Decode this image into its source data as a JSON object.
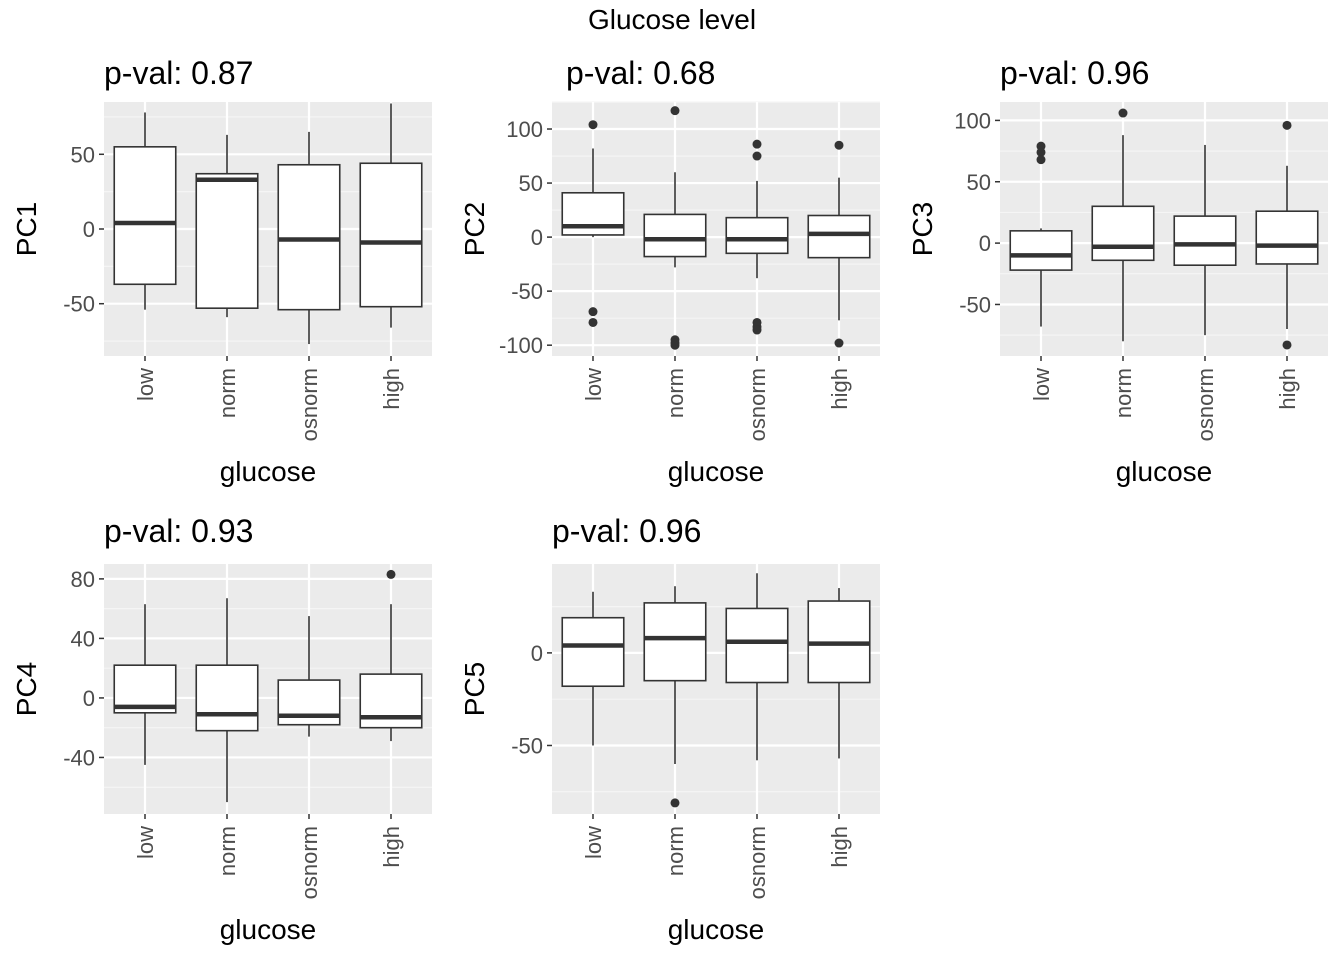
{
  "title": "Glucose level",
  "colors": {
    "panel_bg": "#ebebeb",
    "grid_major": "#ffffff",
    "grid_minor": "#f5f5f5",
    "box_fill": "#ffffff",
    "box_line": "#333333",
    "tick_text": "#4d4d4d",
    "label_text": "#000000"
  },
  "chart_data": [
    {
      "type": "boxplot",
      "title": "p-val: 0.87",
      "xlabel": "glucose",
      "ylabel": "PC1",
      "categories": [
        "low",
        "norm",
        "osnorm",
        "high"
      ],
      "ylim": [
        -85,
        85
      ],
      "yticks": [
        -50,
        0,
        50
      ],
      "boxes": [
        {
          "q1": -37,
          "median": 4,
          "q3": 55,
          "whisker_low": -54,
          "whisker_high": 78,
          "outliers": []
        },
        {
          "q1": -53,
          "median": 33,
          "q3": 37,
          "whisker_low": -59,
          "whisker_high": 63,
          "outliers": []
        },
        {
          "q1": -54,
          "median": -7,
          "q3": 43,
          "whisker_low": -77,
          "whisker_high": 65,
          "outliers": []
        },
        {
          "q1": -52,
          "median": -9,
          "q3": 44,
          "whisker_low": -66,
          "whisker_high": 84,
          "outliers": []
        }
      ]
    },
    {
      "type": "boxplot",
      "title": "p-val: 0.68",
      "xlabel": "glucose",
      "ylabel": "PC2",
      "categories": [
        "low",
        "norm",
        "osnorm",
        "high"
      ],
      "ylim": [
        -110,
        125
      ],
      "yticks": [
        -100,
        -50,
        0,
        50,
        100
      ],
      "boxes": [
        {
          "q1": 2,
          "median": 10,
          "q3": 41,
          "whisker_low": 0,
          "whisker_high": 82,
          "outliers": [
            104,
            -69,
            -79
          ]
        },
        {
          "q1": -18,
          "median": -2,
          "q3": 21,
          "whisker_low": -28,
          "whisker_high": 60,
          "outliers": [
            117,
            -95,
            -98,
            -100
          ]
        },
        {
          "q1": -15,
          "median": -2,
          "q3": 18,
          "whisker_low": -38,
          "whisker_high": 52,
          "outliers": [
            86,
            75,
            -79,
            -83,
            -86
          ]
        },
        {
          "q1": -19,
          "median": 3,
          "q3": 20,
          "whisker_low": -77,
          "whisker_high": 55,
          "outliers": [
            85,
            -98
          ]
        }
      ]
    },
    {
      "type": "boxplot",
      "title": "p-val: 0.96",
      "xlabel": "glucose",
      "ylabel": "PC3",
      "categories": [
        "low",
        "norm",
        "osnorm",
        "high"
      ],
      "ylim": [
        -92,
        115
      ],
      "yticks": [
        -50,
        0,
        50,
        100
      ],
      "boxes": [
        {
          "q1": -22,
          "median": -10,
          "q3": 10,
          "whisker_low": -68,
          "whisker_high": 12,
          "outliers": [
            79,
            74,
            68
          ]
        },
        {
          "q1": -14,
          "median": -3,
          "q3": 30,
          "whisker_low": -80,
          "whisker_high": 88,
          "outliers": [
            106
          ]
        },
        {
          "q1": -18,
          "median": -1,
          "q3": 22,
          "whisker_low": -75,
          "whisker_high": 80,
          "outliers": []
        },
        {
          "q1": -17,
          "median": -2,
          "q3": 26,
          "whisker_low": -70,
          "whisker_high": 63,
          "outliers": [
            96,
            -83
          ]
        }
      ]
    },
    {
      "type": "boxplot",
      "title": "p-val: 0.93",
      "xlabel": "glucose",
      "ylabel": "PC4",
      "categories": [
        "low",
        "norm",
        "osnorm",
        "high"
      ],
      "ylim": [
        -78,
        90
      ],
      "yticks": [
        -40,
        0,
        40,
        80
      ],
      "boxes": [
        {
          "q1": -10,
          "median": -6,
          "q3": 22,
          "whisker_low": -45,
          "whisker_high": 63,
          "outliers": []
        },
        {
          "q1": -22,
          "median": -11,
          "q3": 22,
          "whisker_low": -70,
          "whisker_high": 67,
          "outliers": []
        },
        {
          "q1": -18,
          "median": -12,
          "q3": 12,
          "whisker_low": -26,
          "whisker_high": 55,
          "outliers": []
        },
        {
          "q1": -20,
          "median": -13,
          "q3": 16,
          "whisker_low": -29,
          "whisker_high": 63,
          "outliers": [
            83
          ]
        }
      ]
    },
    {
      "type": "boxplot",
      "title": "p-val: 0.96",
      "xlabel": "glucose",
      "ylabel": "PC5",
      "categories": [
        "low",
        "norm",
        "osnorm",
        "high"
      ],
      "ylim": [
        -87,
        48
      ],
      "yticks": [
        -50,
        0
      ],
      "boxes": [
        {
          "q1": -18,
          "median": 4,
          "q3": 19,
          "whisker_low": -50,
          "whisker_high": 33,
          "outliers": []
        },
        {
          "q1": -15,
          "median": 8,
          "q3": 27,
          "whisker_low": -60,
          "whisker_high": 36,
          "outliers": [
            -81
          ]
        },
        {
          "q1": -16,
          "median": 6,
          "q3": 24,
          "whisker_low": -58,
          "whisker_high": 43,
          "outliers": []
        },
        {
          "q1": -16,
          "median": 5,
          "q3": 28,
          "whisker_low": -57,
          "whisker_high": 35,
          "outliers": []
        }
      ]
    }
  ]
}
